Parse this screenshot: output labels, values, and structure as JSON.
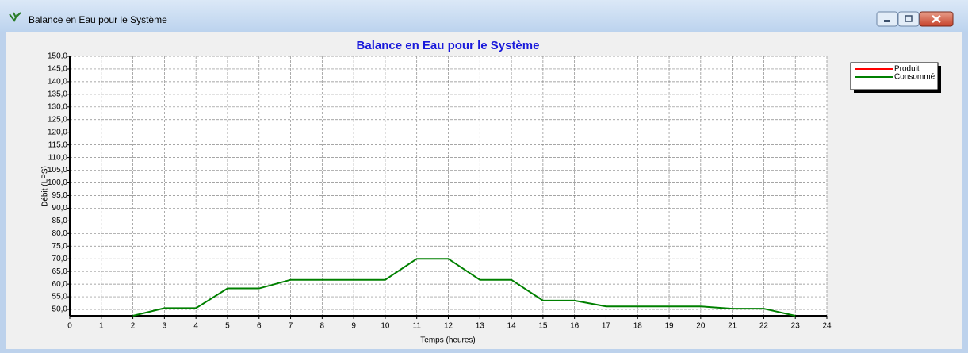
{
  "window": {
    "title": "Balance en Eau pour le Système"
  },
  "chart_data": {
    "type": "line",
    "title": "Balance en Eau pour le Système",
    "xlabel": "Temps (heures)",
    "ylabel": "Débit (LPS)",
    "x": [
      0,
      1,
      2,
      3,
      4,
      5,
      6,
      7,
      8,
      9,
      10,
      11,
      12,
      13,
      14,
      15,
      16,
      17,
      18,
      19,
      20,
      21,
      22,
      23,
      24
    ],
    "series": [
      {
        "name": "Produit",
        "color": "#ff0000",
        "values": [
          null,
          null,
          null,
          null,
          null,
          null,
          null,
          null,
          null,
          null,
          null,
          null,
          null,
          null,
          null,
          null,
          null,
          null,
          null,
          null,
          null,
          null,
          null,
          null,
          null
        ]
      },
      {
        "name": "Consommé",
        "color": "#008000",
        "values": [
          null,
          null,
          47.5,
          50.5,
          50.5,
          58.3,
          58.3,
          61.7,
          61.7,
          61.7,
          61.7,
          70,
          70,
          61.7,
          61.7,
          53.5,
          53.5,
          51.2,
          51.2,
          51.2,
          51.2,
          50.3,
          50.3,
          47.5,
          null
        ]
      }
    ],
    "xlim": [
      0,
      24
    ],
    "xticks": [
      0,
      1,
      2,
      3,
      4,
      5,
      6,
      7,
      8,
      9,
      10,
      11,
      12,
      13,
      14,
      15,
      16,
      17,
      18,
      19,
      20,
      21,
      22,
      23,
      24
    ],
    "ylim": [
      47.5,
      150
    ],
    "yticks": [
      {
        "value": 50,
        "label": "50,0"
      },
      {
        "value": 55,
        "label": "55,0"
      },
      {
        "value": 60,
        "label": "60,0"
      },
      {
        "value": 65,
        "label": "65,0"
      },
      {
        "value": 70,
        "label": "70,0"
      },
      {
        "value": 75,
        "label": "75,0"
      },
      {
        "value": 80,
        "label": "80,0"
      },
      {
        "value": 85,
        "label": "85,0"
      },
      {
        "value": 90,
        "label": "90,0"
      },
      {
        "value": 95,
        "label": "95,0"
      },
      {
        "value": 100,
        "label": "100,0"
      },
      {
        "value": 105,
        "label": "105,0"
      },
      {
        "value": 110,
        "label": "110,0"
      },
      {
        "value": 115,
        "label": "115,0"
      },
      {
        "value": 120,
        "label": "120,0"
      },
      {
        "value": 125,
        "label": "125,0"
      },
      {
        "value": 130,
        "label": "130,0"
      },
      {
        "value": 135,
        "label": "135,0"
      },
      {
        "value": 140,
        "label": "140,0"
      },
      {
        "value": 145,
        "label": "145,0"
      },
      {
        "value": 150,
        "label": "150,0"
      }
    ],
    "grid": true,
    "legend": "upper right"
  }
}
